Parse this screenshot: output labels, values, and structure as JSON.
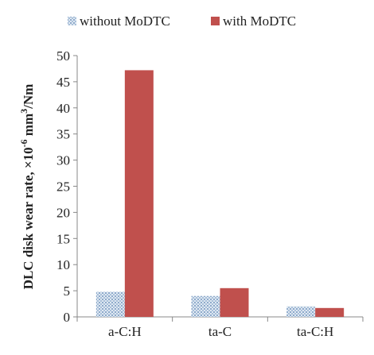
{
  "chart_data": {
    "type": "bar",
    "categories": [
      "a-C:H",
      "ta-C",
      "ta-C:H"
    ],
    "series": [
      {
        "name": "without MoDTC",
        "values": [
          4.8,
          4.0,
          2.0
        ],
        "color": "#9bb8d6",
        "pattern": "hatched"
      },
      {
        "name": "with MoDTC",
        "values": [
          47.2,
          5.5,
          1.7
        ],
        "color": "#c0504d"
      }
    ],
    "ylabel_main": "DLC disk  wear rate, ×10",
    "ylabel_sup1": "-6",
    "ylabel_mid": " mm",
    "ylabel_sup2": "3",
    "ylabel_end": "/Nm",
    "ylim": [
      0,
      50
    ],
    "yticks": [
      0,
      5,
      10,
      15,
      20,
      25,
      30,
      35,
      40,
      45,
      50
    ],
    "grid": false,
    "legend_position": "top"
  }
}
